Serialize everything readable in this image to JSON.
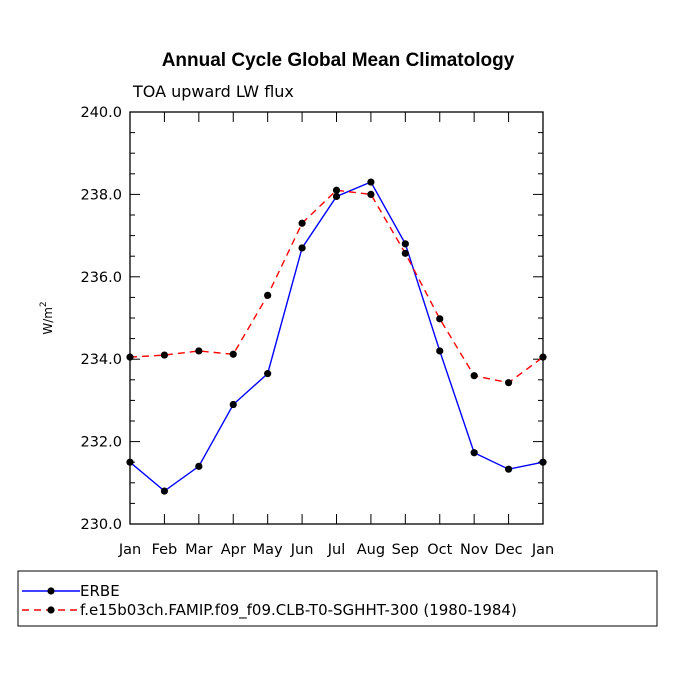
{
  "chart_data": {
    "type": "line",
    "title": "Annual Cycle Global Mean Climatology",
    "subtitle": "TOA upward LW flux",
    "ylabel": "W/m",
    "ylabel_superscript": "2",
    "xlabel": "",
    "categories": [
      "Jan",
      "Feb",
      "Mar",
      "Apr",
      "May",
      "Jun",
      "Jul",
      "Aug",
      "Sep",
      "Oct",
      "Nov",
      "Dec",
      "Jan"
    ],
    "ylim": [
      230.0,
      240.0
    ],
    "yticks": [
      230.0,
      232.0,
      234.0,
      236.0,
      238.0,
      240.0
    ],
    "ytick_labels": [
      "230.0",
      "232.0",
      "234.0",
      "236.0",
      "238.0",
      "240.0"
    ],
    "grid": false,
    "legend_position": "bottom-left",
    "series": [
      {
        "name": "ERBE",
        "color": "#0000ff",
        "dash": "solid",
        "values": [
          231.5,
          230.8,
          231.4,
          232.9,
          233.65,
          236.7,
          237.95,
          238.3,
          236.8,
          234.2,
          231.73,
          231.33,
          231.5
        ]
      },
      {
        "name": "f.e15b03ch.FAMIP.f09_f09.CLB-T0-SGHHT-300 (1980-1984)",
        "color": "#ff0000",
        "dash": "dashed",
        "values": [
          234.05,
          234.1,
          234.2,
          234.12,
          235.55,
          237.3,
          238.1,
          238.0,
          236.57,
          234.98,
          233.6,
          233.43,
          234.05
        ]
      }
    ]
  }
}
